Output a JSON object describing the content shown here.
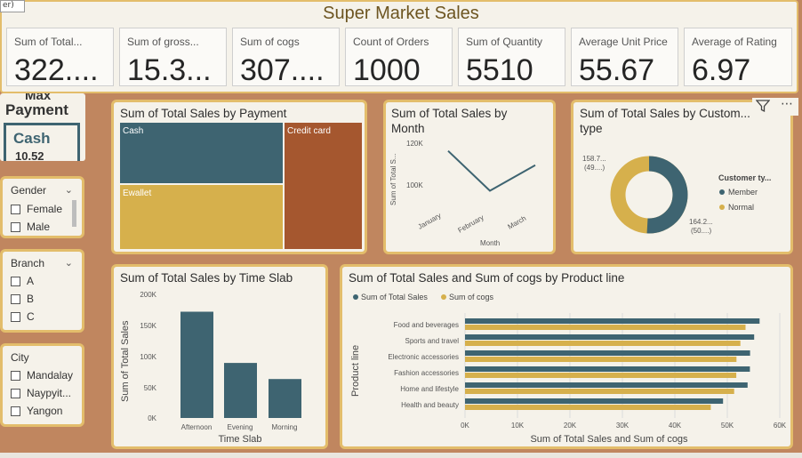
{
  "header": {
    "title": "Super Market Sales",
    "corner_fragment": "er)"
  },
  "kpis": [
    {
      "label": "Sum of Total...",
      "value": "322...."
    },
    {
      "label": "Sum of gross...",
      "value": "15.3..."
    },
    {
      "label": "Sum of cogs",
      "value": "307...."
    },
    {
      "label": "Count of Orders",
      "value": "1000"
    },
    {
      "label": "Sum of Quantity",
      "value": "5510"
    },
    {
      "label": "Average Unit Price",
      "value": "55.67"
    },
    {
      "label": "Average of Rating",
      "value": "6.97"
    }
  ],
  "max_payment": {
    "title_line1": "Max",
    "title_line2": "Payment",
    "value": "Cash",
    "sub": "10.52"
  },
  "slicers": {
    "gender": {
      "title": "Gender",
      "items": [
        "Female",
        "Male"
      ]
    },
    "branch": {
      "title": "Branch",
      "items": [
        "A",
        "B",
        "C"
      ]
    },
    "city": {
      "title": "City",
      "items": [
        "Mandalay",
        "Naypyit...",
        "Yangon"
      ]
    }
  },
  "toolbar": {
    "filter_icon": "filter-icon",
    "more_icon": "more-options-icon"
  },
  "colors": {
    "teal": "#3e6471",
    "gold": "#d6b04c",
    "rust": "#a5572f",
    "border": "#e3bd6b",
    "bg": "#c0865f"
  },
  "chart_data": [
    {
      "type": "treemap",
      "title": "Sum of Total Sales by Payment",
      "categories": [
        "Cash",
        "Credit card",
        "Ewallet"
      ],
      "values": [
        112206.57,
        100767.07,
        109993.11
      ]
    },
    {
      "type": "line",
      "title_line1": "Sum of Total Sales by",
      "title_line2": "Month",
      "categories": [
        "January",
        "February",
        "March"
      ],
      "values": [
        116292,
        97219,
        109456
      ],
      "ylabel": "Sum of Total S...",
      "xlabel": "Month",
      "yticks": [
        "120K",
        "100K"
      ]
    },
    {
      "type": "donut",
      "title_line1": "Sum of Total Sales by Custom...",
      "title_line2": "type",
      "legend_title": "Customer ty...",
      "series": [
        {
          "name": "Member",
          "value": 164.2,
          "label_line1": "164.2...",
          "label_line2": "(50....)"
        },
        {
          "name": "Normal",
          "value": 158.7,
          "label_line1": "158.7...",
          "label_line2": "(49....)"
        }
      ]
    },
    {
      "type": "bar",
      "title": "Sum of Total Sales by Time Slab",
      "categories": [
        "Afternoon",
        "Evening",
        "Morning"
      ],
      "values": [
        172000,
        89000,
        63000
      ],
      "ylim": [
        0,
        200000
      ],
      "yticks": [
        "200K",
        "150K",
        "100K",
        "50K",
        "0K"
      ],
      "xlabel": "Time Slab",
      "ylabel": "Sum of Total Sales"
    },
    {
      "type": "bar",
      "orientation": "horizontal",
      "title": "Sum of Total Sales and Sum of cogs by Product line",
      "categories": [
        "Food and beverages",
        "Sports and travel",
        "Electronic accessories",
        "Fashion accessories",
        "Home and lifestyle",
        "Health and beauty"
      ],
      "series": [
        {
          "name": "Sum of Total Sales",
          "values": [
            56145,
            55123,
            54338,
            54306,
            53862,
            49194
          ]
        },
        {
          "name": "Sum of cogs",
          "values": [
            53471,
            52497,
            51750,
            51719,
            51297,
            46851
          ]
        }
      ],
      "xlim": [
        0,
        60000
      ],
      "xticks": [
        "0K",
        "10K",
        "20K",
        "30K",
        "40K",
        "50K",
        "60K"
      ],
      "xlabel": "Sum of Total Sales and Sum of cogs",
      "ylabel": "Product line"
    }
  ]
}
